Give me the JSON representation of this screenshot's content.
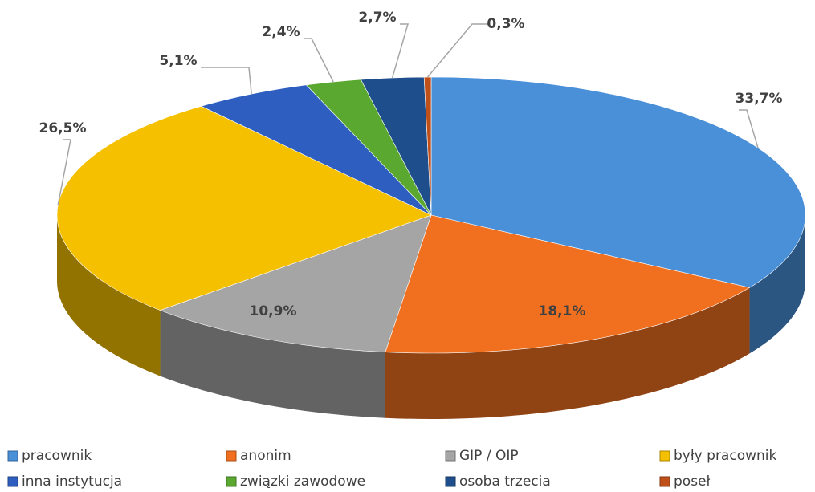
{
  "chart_data": {
    "type": "pie",
    "categories": [
      "pracownik",
      "anonim",
      "GIP / OIP",
      "były pracownik",
      "inna instytucja",
      "związki zawodowe",
      "osoba trzecia",
      "poseł"
    ],
    "values": [
      33.7,
      18.1,
      10.9,
      26.5,
      5.1,
      2.4,
      2.7,
      0.3
    ],
    "value_labels": [
      "33,7%",
      "18,1%",
      "10,9%",
      "26,5%",
      "5,1%",
      "2,4%",
      "2,7%",
      "0,3%"
    ],
    "colors": [
      "#4a90d9",
      "#f07020",
      "#a5a5a5",
      "#f5c000",
      "#2e5fc0",
      "#5aa830",
      "#1f4e8c",
      "#c0501a"
    ],
    "legend": "bottom"
  }
}
